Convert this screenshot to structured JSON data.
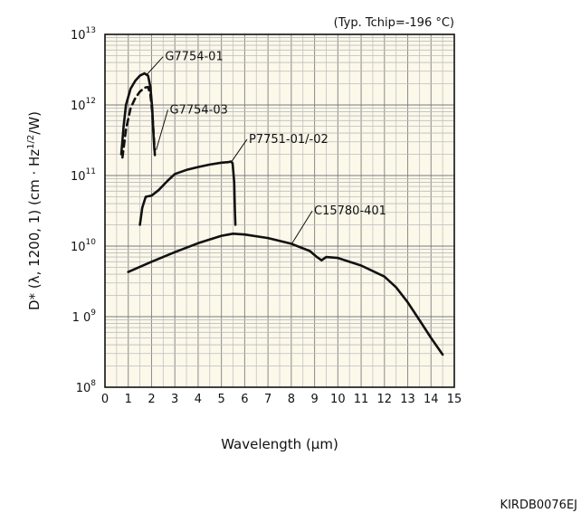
{
  "chart_data": {
    "type": "line",
    "yscale": "log",
    "title": "",
    "note": "(Typ. Tchip=-196 °C)",
    "xlabel": "Wavelength (µm)",
    "ylabel": {
      "main": "D* (λ, 1200, 1) (cm · Hz",
      "sup": "1/2",
      "end": "/W)"
    },
    "xlim": [
      0,
      15
    ],
    "ylim": [
      100000000,
      10000000000000
    ],
    "x_ticks": [
      "0",
      "1",
      "2",
      "3",
      "4",
      "5",
      "6",
      "7",
      "8",
      "9",
      "10",
      "11",
      "12",
      "13",
      "14",
      "15"
    ],
    "y_ticks": [
      {
        "base": "10",
        "exp": "8"
      },
      {
        "base": "1 0",
        "exp": "9"
      },
      {
        "base": "10",
        "exp": "10"
      },
      {
        "base": "10",
        "exp": "11"
      },
      {
        "base": "10",
        "exp": "12"
      },
      {
        "base": "10",
        "exp": "13"
      }
    ],
    "grid": true,
    "series": [
      {
        "name": "G7754-01",
        "style": "solid",
        "label_at": [
          2.5,
          4300000000000
        ],
        "leader_to": [
          1.8,
          2700000000000
        ],
        "points": [
          [
            0.7,
            200000000000
          ],
          [
            0.8,
            500000000000
          ],
          [
            0.9,
            1000000000000
          ],
          [
            1.1,
            1700000000000
          ],
          [
            1.3,
            2200000000000
          ],
          [
            1.5,
            2600000000000
          ],
          [
            1.7,
            2800000000000
          ],
          [
            1.85,
            2600000000000
          ],
          [
            1.95,
            1800000000000
          ],
          [
            2.03,
            900000000000
          ],
          [
            2.08,
            400000000000
          ],
          [
            2.12,
            230000000000
          ]
        ]
      },
      {
        "name": "G7754-03",
        "style": "dashed",
        "label_at": [
          2.7,
          760000000000
        ],
        "leader_to": [
          2.2,
          230000000000
        ],
        "points": [
          [
            0.75,
            180000000000
          ],
          [
            0.9,
            450000000000
          ],
          [
            1.1,
            900000000000
          ],
          [
            1.3,
            1250000000000
          ],
          [
            1.5,
            1550000000000
          ],
          [
            1.7,
            1750000000000
          ],
          [
            1.85,
            1800000000000
          ],
          [
            1.95,
            1400000000000
          ],
          [
            2.03,
            800000000000
          ],
          [
            2.1,
            350000000000
          ],
          [
            2.15,
            180000000000
          ]
        ]
      },
      {
        "name": "P7751-01/-02",
        "style": "solid",
        "label_at": [
          6.1,
          290000000000
        ],
        "leader_to": [
          5.45,
          160000000000
        ],
        "points": [
          [
            1.5,
            20000000000
          ],
          [
            1.6,
            35000000000
          ],
          [
            1.75,
            50000000000
          ],
          [
            2.0,
            52000000000
          ],
          [
            2.3,
            62000000000
          ],
          [
            2.7,
            85000000000
          ],
          [
            3.0,
            105000000000
          ],
          [
            3.5,
            120000000000
          ],
          [
            4.0,
            132000000000
          ],
          [
            4.5,
            143000000000
          ],
          [
            5.0,
            152000000000
          ],
          [
            5.3,
            155000000000
          ],
          [
            5.4,
            158000000000
          ],
          [
            5.48,
            150000000000
          ],
          [
            5.55,
            80000000000
          ],
          [
            5.58,
            30000000000
          ],
          [
            5.6,
            20000000000
          ]
        ]
      },
      {
        "name": "C15780-401",
        "style": "solid",
        "label_at": [
          8.9,
          28000000000
        ],
        "leader_to": [
          8.0,
          10500000000
        ],
        "points": [
          [
            1.0,
            4300000000
          ],
          [
            2.0,
            6000000000
          ],
          [
            3.0,
            8200000000
          ],
          [
            4.0,
            11000000000
          ],
          [
            5.0,
            14000000000
          ],
          [
            5.5,
            15000000000
          ],
          [
            6.0,
            14600000000
          ],
          [
            7.0,
            13000000000
          ],
          [
            8.0,
            10800000000
          ],
          [
            8.8,
            8500000000
          ],
          [
            9.1,
            7000000000
          ],
          [
            9.3,
            6300000000
          ],
          [
            9.5,
            7000000000
          ],
          [
            10.0,
            6800000000
          ],
          [
            11.0,
            5300000000
          ],
          [
            12.0,
            3700000000
          ],
          [
            12.5,
            2600000000
          ],
          [
            13.0,
            1600000000
          ],
          [
            13.5,
            900000000
          ],
          [
            14.0,
            500000000
          ],
          [
            14.5,
            290000000
          ]
        ]
      }
    ]
  },
  "footer": {
    "doc_code": "KIRDB0076EJ"
  }
}
